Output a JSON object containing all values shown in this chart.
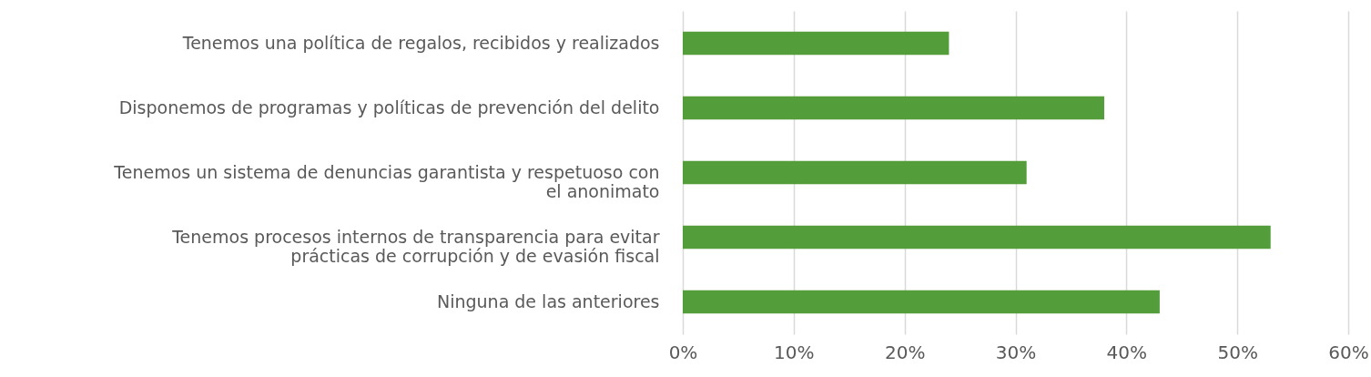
{
  "chart_data": {
    "type": "bar",
    "orientation": "horizontal",
    "categories": [
      "Tenemos una política de regalos, recibidos y realizados",
      "Disponemos de programas y políticas de prevención del delito",
      "Tenemos un sistema de denuncias garantista y respetuoso con el anonimato",
      "Tenemos procesos internos de transparencia para evitar prácticas de corrupción y de evasión fiscal",
      "Ninguna de las anteriores"
    ],
    "values": [
      24,
      38,
      31,
      53,
      43
    ],
    "color": "#539e3a",
    "xlim": [
      0,
      60
    ],
    "xticks": [
      {
        "value": 0,
        "label": "0%"
      },
      {
        "value": 10,
        "label": "10%"
      },
      {
        "value": 20,
        "label": "20%"
      },
      {
        "value": 30,
        "label": "30%"
      },
      {
        "value": 40,
        "label": "40%"
      },
      {
        "value": 50,
        "label": "50%"
      },
      {
        "value": 60,
        "label": "60%"
      }
    ],
    "grid": "x"
  }
}
